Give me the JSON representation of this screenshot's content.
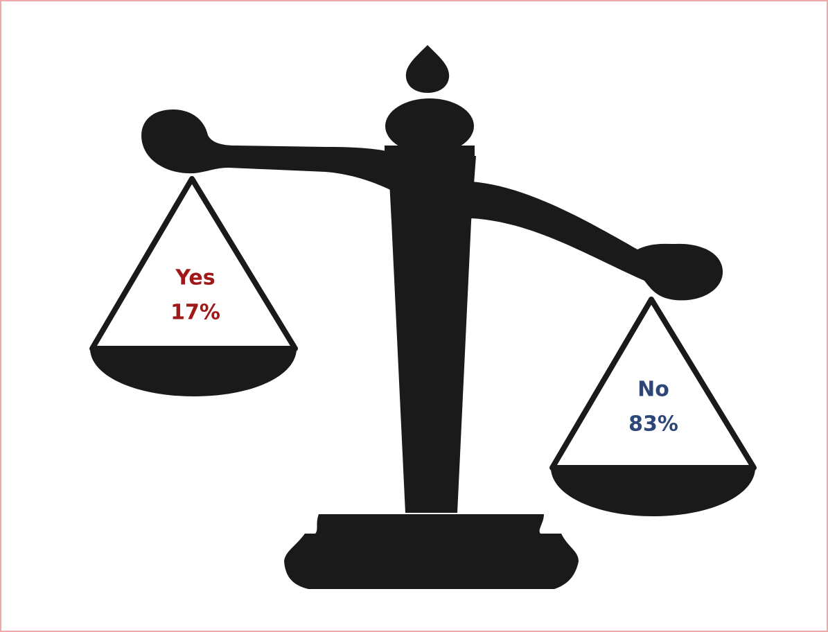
{
  "pans": [
    {
      "label": "Yes",
      "value": "17%"
    },
    {
      "label": "No",
      "value": "83%"
    }
  ]
}
